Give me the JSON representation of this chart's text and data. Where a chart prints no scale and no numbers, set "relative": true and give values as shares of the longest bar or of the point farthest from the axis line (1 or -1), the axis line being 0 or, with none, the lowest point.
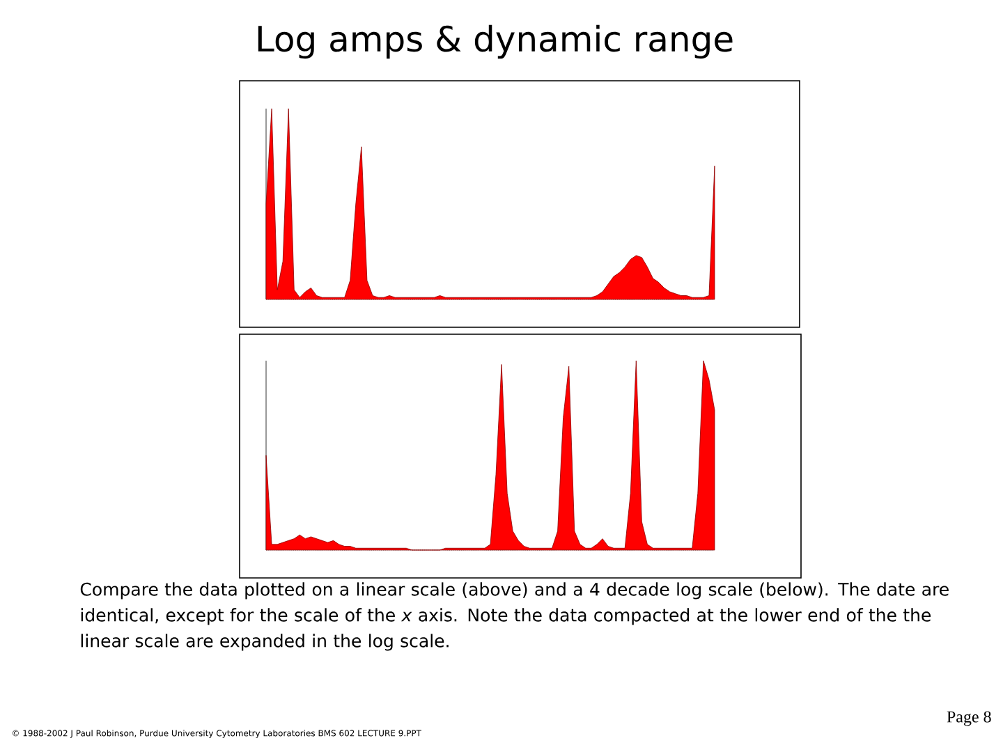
{
  "chart_data": [
    {
      "type": "area",
      "title": "Log amps & dynamic range",
      "relative": true,
      "color": "#ff0000",
      "categories": [
        null,
        null,
        null,
        null,
        null,
        null,
        null,
        null,
        null,
        null,
        null,
        null,
        null,
        null,
        null,
        null,
        null,
        null,
        null,
        null,
        null,
        null,
        null,
        null,
        null,
        null,
        null,
        null,
        null,
        null,
        null,
        null,
        null,
        null,
        null,
        null,
        null,
        null,
        null,
        null,
        null,
        null,
        null,
        null,
        null,
        null,
        null,
        null,
        null,
        null,
        null,
        null,
        null,
        null,
        null,
        null,
        null,
        null,
        null,
        null,
        null,
        null,
        null,
        null,
        null,
        null,
        null,
        null,
        null,
        null,
        null,
        null,
        null,
        null,
        null,
        null,
        null,
        null,
        null,
        null,
        null
      ],
      "values": [
        0.5,
        1.0,
        0.05,
        0.2,
        1.0,
        0.05,
        0.01,
        0.04,
        0.06,
        0.02,
        0.01,
        0.01,
        0.01,
        0.01,
        0.01,
        0.1,
        0.5,
        0.8,
        0.1,
        0.02,
        0.01,
        0.01,
        0.02,
        0.01,
        0.01,
        0.01,
        0.01,
        0.01,
        0.01,
        0.01,
        0.01,
        0.02,
        0.01,
        0.01,
        0.01,
        0.01,
        0.01,
        0.01,
        0.01,
        0.01,
        0.01,
        0.01,
        0.01,
        0.01,
        0.01,
        0.01,
        0.01,
        0.01,
        0.01,
        0.01,
        0.01,
        0.01,
        0.01,
        0.01,
        0.01,
        0.01,
        0.01,
        0.01,
        0.01,
        0.02,
        0.04,
        0.08,
        0.12,
        0.14,
        0.17,
        0.21,
        0.23,
        0.22,
        0.17,
        0.11,
        0.09,
        0.06,
        0.04,
        0.03,
        0.02,
        0.02,
        0.01,
        0.01,
        0.01,
        0.02,
        0.7
      ]
    },
    {
      "type": "area",
      "relative": true,
      "color": "#ff0000",
      "categories": [
        null,
        null,
        null,
        null,
        null,
        null,
        null,
        null,
        null,
        null,
        null,
        null,
        null,
        null,
        null,
        null,
        null,
        null,
        null,
        null,
        null,
        null,
        null,
        null,
        null,
        null,
        null,
        null,
        null,
        null,
        null,
        null,
        null,
        null,
        null,
        null,
        null,
        null,
        null,
        null,
        null,
        null,
        null,
        null,
        null,
        null,
        null,
        null,
        null,
        null,
        null,
        null,
        null,
        null,
        null,
        null,
        null,
        null,
        null,
        null,
        null,
        null,
        null,
        null,
        null,
        null,
        null,
        null,
        null,
        null,
        null,
        null,
        null,
        null,
        null,
        null,
        null,
        null,
        null,
        null,
        null
      ],
      "values": [
        0.5,
        0.03,
        0.03,
        0.04,
        0.05,
        0.06,
        0.08,
        0.06,
        0.07,
        0.06,
        0.05,
        0.04,
        0.05,
        0.03,
        0.02,
        0.02,
        0.01,
        0.01,
        0.01,
        0.01,
        0.01,
        0.01,
        0.01,
        0.01,
        0.01,
        0.01,
        0,
        0,
        0,
        0,
        0,
        0,
        0.01,
        0.01,
        0.01,
        0.01,
        0.01,
        0.01,
        0.01,
        0.01,
        0.03,
        0.4,
        0.98,
        0.3,
        0.1,
        0.05,
        0.02,
        0.01,
        0.01,
        0.01,
        0.01,
        0.01,
        0.1,
        0.7,
        0.97,
        0.1,
        0.03,
        0.01,
        0.01,
        0.03,
        0.06,
        0.02,
        0.01,
        0.01,
        0.01,
        0.3,
        1.0,
        0.15,
        0.03,
        0.01,
        0.01,
        0.01,
        0.01,
        0.01,
        0.01,
        0.01,
        0.01,
        0.3,
        1.0,
        0.9,
        0.74
      ],
      "annotations": [
        "Compare the data plotted on a linear scale (above) and a 4 decade log scale (below). The date are identical, except for the scale of the *x* axis. Note the data compacted at the lower end of the the linear scale are expanded in the log scale.",
        "© 1988-2002 J Paul Robinson, Purdue University Cytometry Laboratories BMS 602 LECTURE 9.PPT",
        "Page 8"
      ]
    }
  ]
}
